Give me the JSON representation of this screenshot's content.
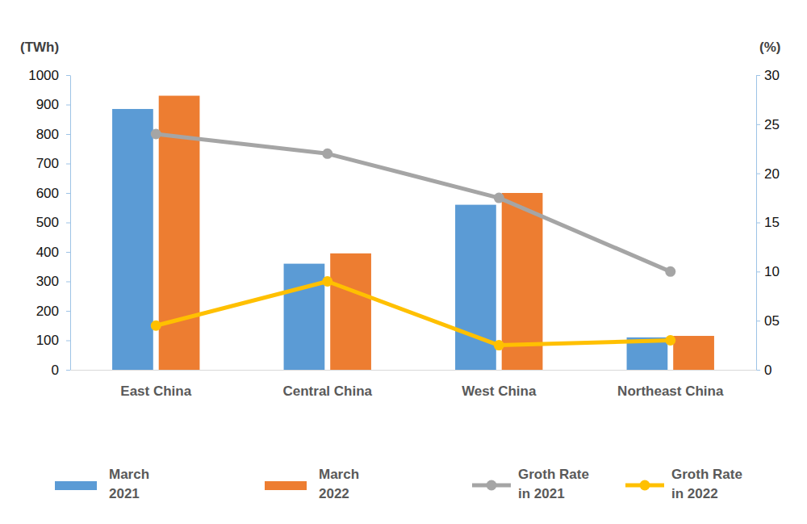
{
  "chart_data": {
    "type": "bar",
    "y_label": "(TWh)",
    "y2_label": "(%)",
    "categories": [
      "East China",
      "Central China",
      "West China",
      "Northeast China"
    ],
    "series": [
      {
        "name": "March 2021",
        "type": "bar",
        "color": "#5b9bd5",
        "values": [
          885,
          360,
          560,
          110
        ]
      },
      {
        "name": "March 2022",
        "type": "bar",
        "color": "#ed7d31",
        "values": [
          930,
          395,
          600,
          115
        ]
      },
      {
        "name": "Groth Rate in 2021",
        "type": "line",
        "axis": "y2",
        "marker": "circle",
        "color": "#a5a5a5",
        "values": [
          24,
          22,
          17.5,
          10
        ]
      },
      {
        "name": "Groth Rate in 2022",
        "type": "line",
        "axis": "y2",
        "marker": "circle",
        "color": "#ffc000",
        "values": [
          4.5,
          9,
          2.5,
          3
        ]
      }
    ],
    "ylim": [
      0,
      1000
    ],
    "yticks": [
      0,
      100,
      200,
      300,
      400,
      500,
      600,
      700,
      800,
      900,
      1000
    ],
    "y2lim": [
      0,
      30
    ],
    "y2ticks": [
      0,
      {
        "value": 5,
        "label": "05"
      },
      10,
      15,
      20,
      25,
      30
    ],
    "grid": false,
    "legend": "bottom"
  }
}
